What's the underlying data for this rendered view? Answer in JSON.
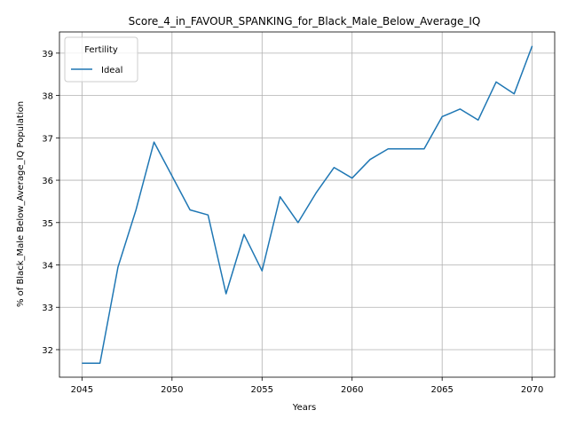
{
  "chart_data": {
    "type": "line",
    "title": "Score_4_in_FAVOUR_SPANKING_for_Black_Male_Below_Average_IQ",
    "xlabel": "Years",
    "ylabel": "% of Black_Male Below_Average_IQ Population",
    "xlim": [
      2043.75,
      2071.25
    ],
    "ylim": [
      31.35,
      39.5
    ],
    "xticks": [
      2045,
      2050,
      2055,
      2060,
      2065,
      2070
    ],
    "yticks": [
      32,
      33,
      34,
      35,
      36,
      37,
      38,
      39
    ],
    "grid": true,
    "legend": {
      "title": "Fertility",
      "position": "top-left"
    },
    "series": [
      {
        "name": "Ideal",
        "color": "#1f77b4",
        "x": [
          2045,
          2046,
          2047,
          2048,
          2049,
          2050,
          2051,
          2052,
          2053,
          2054,
          2055,
          2056,
          2057,
          2058,
          2059,
          2060,
          2061,
          2062,
          2063,
          2064,
          2065,
          2066,
          2067,
          2068,
          2069,
          2070
        ],
        "y": [
          31.68,
          31.68,
          33.95,
          35.3,
          36.9,
          36.1,
          35.3,
          35.18,
          33.32,
          34.72,
          33.86,
          35.61,
          35.0,
          35.7,
          36.3,
          36.05,
          36.49,
          36.74,
          36.74,
          36.74,
          37.5,
          37.68,
          37.42,
          38.32,
          38.04,
          39.17
        ]
      }
    ]
  }
}
